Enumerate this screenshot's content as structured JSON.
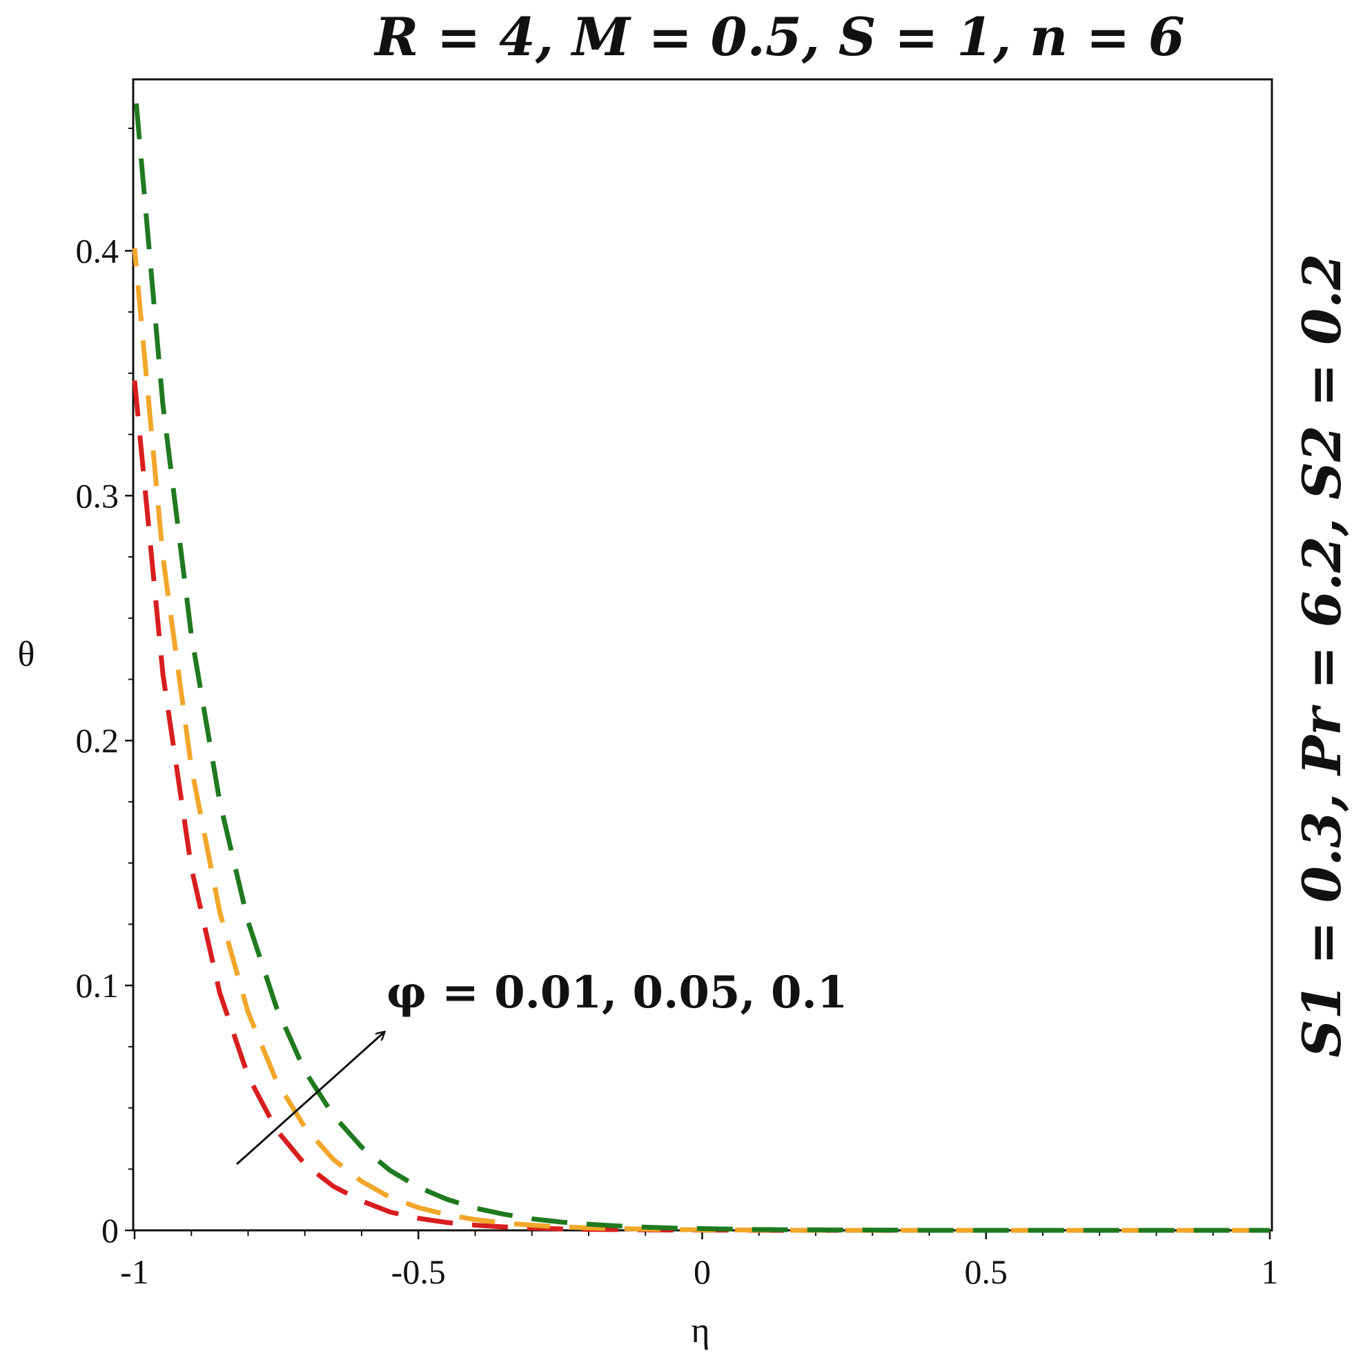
{
  "chart_data": {
    "type": "line",
    "title": "R = 4, M = 0.5, S = 1, n = 6",
    "side_annotation": "S1 = 0.3, Pr = 6.2, S2 = 0.2",
    "curve_annotation": "φ = 0.01, 0.05, 0.1",
    "xlabel": "η",
    "ylabel": "θ",
    "xlim": [
      -1,
      1
    ],
    "ylim": [
      0,
      0.47
    ],
    "x_ticks": [
      -1,
      -0.5,
      0,
      0.5,
      1
    ],
    "x_tick_labels": [
      "-1",
      "-0.5",
      "0",
      "0.5",
      "1"
    ],
    "y_ticks": [
      0,
      0.1,
      0.2,
      0.3,
      0.4
    ],
    "y_tick_labels": [
      "0",
      "0.1",
      "0.2",
      "0.3",
      "0.4"
    ],
    "grid": false,
    "line_style": "dashed",
    "x": [
      -1.0,
      -0.95,
      -0.9,
      -0.85,
      -0.8,
      -0.75,
      -0.7,
      -0.65,
      -0.6,
      -0.55,
      -0.5,
      -0.45,
      -0.4,
      -0.35,
      -0.3,
      -0.25,
      -0.2,
      -0.15,
      -0.1,
      -0.05,
      0.0,
      0.1,
      0.2,
      0.3,
      0.4,
      0.5,
      0.6,
      0.7,
      0.8,
      0.9,
      1.0
    ],
    "series": [
      {
        "color": "#d81e1e",
        "values": [
          0.347,
          0.227,
          0.148,
          0.097,
          0.063,
          0.041,
          0.027,
          0.018,
          0.012,
          0.0075,
          0.0049,
          0.0032,
          0.0021,
          0.0014,
          0.0009,
          0.0006,
          0.0004,
          0.0003,
          0.0002,
          0.0001,
          0.0001,
          0.0,
          0.0,
          0.0,
          0.0,
          0.0,
          0.0,
          0.0,
          0.0,
          0.0,
          0.0
        ]
      },
      {
        "color": "#f2a62a",
        "values": [
          0.401,
          0.275,
          0.189,
          0.13,
          0.089,
          0.061,
          0.042,
          0.029,
          0.02,
          0.0135,
          0.0093,
          0.0064,
          0.0044,
          0.003,
          0.0021,
          0.0014,
          0.001,
          0.0007,
          0.0005,
          0.0003,
          0.0002,
          0.0001,
          0.0,
          0.0,
          0.0,
          0.0,
          0.0,
          0.0,
          0.0,
          0.0,
          0.0
        ]
      },
      {
        "color": "#1f7a1f",
        "values": [
          0.468,
          0.337,
          0.243,
          0.175,
          0.126,
          0.091,
          0.065,
          0.047,
          0.034,
          0.0245,
          0.0176,
          0.0127,
          0.0091,
          0.0066,
          0.0047,
          0.0034,
          0.0025,
          0.0018,
          0.0013,
          0.0009,
          0.0007,
          0.0003,
          0.0002,
          0.0001,
          0.0,
          0.0,
          0.0,
          0.0,
          0.0,
          0.0,
          0.0
        ]
      }
    ],
    "arrow": {
      "from": [
        -0.82,
        0.027
      ],
      "to": [
        -0.56,
        0.081
      ],
      "color": "#111111"
    }
  }
}
